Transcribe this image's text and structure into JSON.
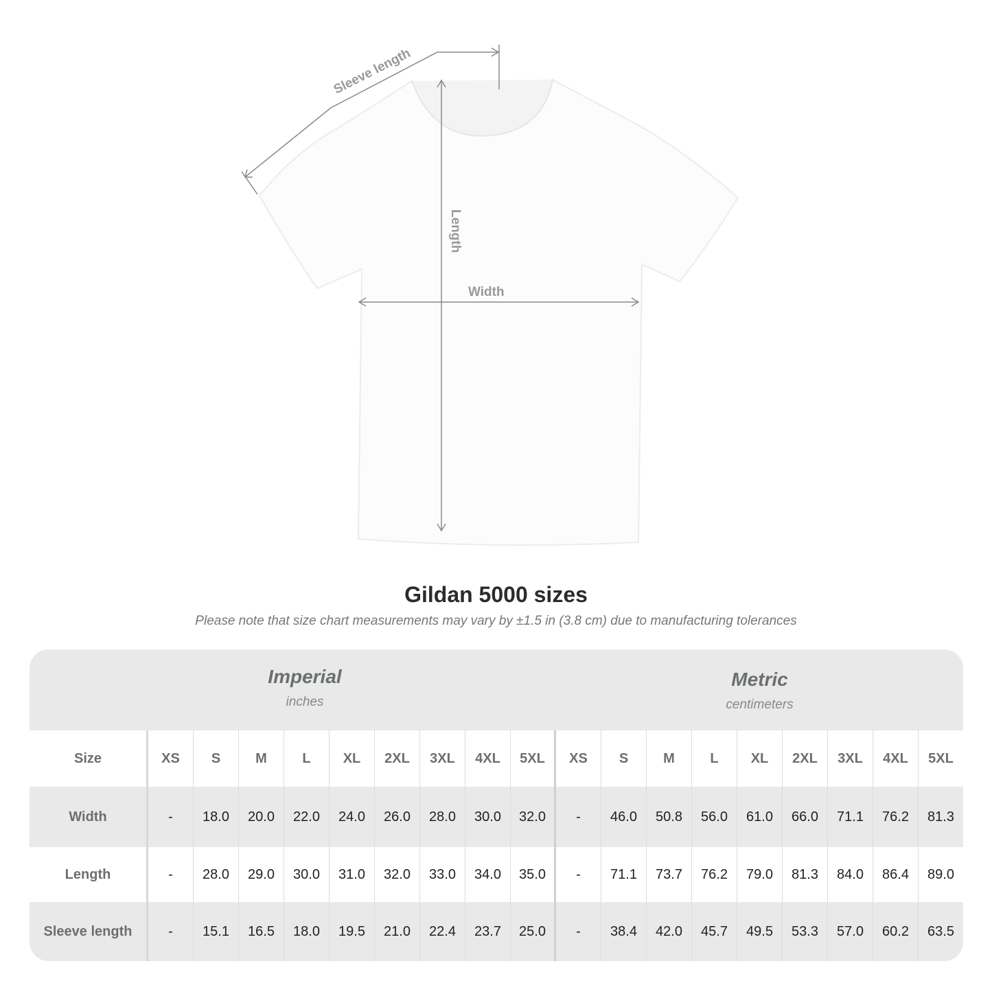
{
  "diagram": {
    "labels": {
      "sleeve": "Sleeve length",
      "length": "Length",
      "width": "Width"
    },
    "line_color": "#8a8a8a"
  },
  "title": "Gildan 5000 sizes",
  "note": "Please note that size chart measurements may vary by ±1.5 in (3.8 cm) due to manufacturing tolerances",
  "table": {
    "imperial": {
      "name": "Imperial",
      "unit": "inches"
    },
    "metric": {
      "name": "Metric",
      "unit": "centimeters"
    },
    "size_label": "Size",
    "sizes": [
      "XS",
      "S",
      "M",
      "L",
      "XL",
      "2XL",
      "3XL",
      "4XL",
      "5XL"
    ],
    "rows": [
      {
        "label": "Width",
        "imperial": [
          "-",
          "18.0",
          "20.0",
          "22.0",
          "24.0",
          "26.0",
          "28.0",
          "30.0",
          "32.0"
        ],
        "metric": [
          "-",
          "46.0",
          "50.8",
          "56.0",
          "61.0",
          "66.0",
          "71.1",
          "76.2",
          "81.3"
        ]
      },
      {
        "label": "Length",
        "imperial": [
          "-",
          "28.0",
          "29.0",
          "30.0",
          "31.0",
          "32.0",
          "33.0",
          "34.0",
          "35.0"
        ],
        "metric": [
          "-",
          "71.1",
          "73.7",
          "76.2",
          "79.0",
          "81.3",
          "84.0",
          "86.4",
          "89.0"
        ]
      },
      {
        "label": "Sleeve length",
        "imperial": [
          "-",
          "15.1",
          "16.5",
          "18.0",
          "19.5",
          "21.0",
          "22.4",
          "23.7",
          "25.0"
        ],
        "metric": [
          "-",
          "38.4",
          "42.0",
          "45.7",
          "49.5",
          "53.3",
          "57.0",
          "60.2",
          "63.5"
        ]
      }
    ]
  }
}
